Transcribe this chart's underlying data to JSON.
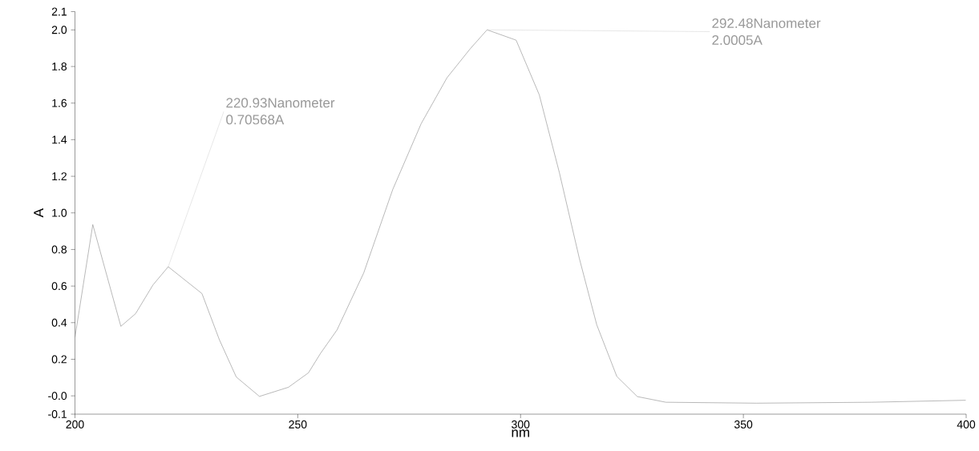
{
  "chart_data": {
    "type": "line",
    "xlabel": "nm",
    "ylabel": "A",
    "color": "#8a8a8a",
    "x": [
      200,
      204.0,
      210.3,
      213.6,
      217.5,
      220.93,
      228.5,
      232.4,
      236.2,
      241.4,
      247.9,
      252.4,
      255.1,
      258.8,
      264.8,
      271.3,
      277.7,
      283.5,
      288.7,
      292.48,
      299.0,
      304.2,
      308.7,
      313.2,
      317.1,
      321.6,
      326.2,
      332.6,
      352.9,
      378.7,
      399.9
    ],
    "values": [
      0.32,
      0.936,
      0.38,
      0.449,
      0.606,
      0.70568,
      0.559,
      0.307,
      0.103,
      -0.003,
      0.047,
      0.126,
      0.232,
      0.36,
      0.672,
      1.127,
      1.488,
      1.739,
      1.897,
      2.0005,
      1.944,
      1.645,
      1.221,
      0.75,
      0.388,
      0.106,
      -0.004,
      -0.035,
      -0.04,
      -0.035,
      -0.024
    ],
    "xlim": [
      200,
      400
    ],
    "xticks": [
      200,
      250,
      300,
      350,
      400
    ],
    "ylim": [
      -0.1,
      2.1
    ],
    "yticks": [
      {
        "value": -0.1,
        "label": "-0.1"
      },
      {
        "value": 0,
        "label": "-0.0"
      },
      {
        "value": 0.2,
        "label": "0.2"
      },
      {
        "value": 0.4,
        "label": "0.4"
      },
      {
        "value": 0.6,
        "label": "0.6"
      },
      {
        "value": 0.8,
        "label": "0.8"
      },
      {
        "value": 1.0,
        "label": "1.0"
      },
      {
        "value": 1.2,
        "label": "1.2"
      },
      {
        "value": 1.4,
        "label": "1.4"
      },
      {
        "value": 1.6,
        "label": "1.6"
      },
      {
        "value": 1.8,
        "label": "1.8"
      },
      {
        "value": 2.0,
        "label": "2.0"
      },
      {
        "value": 2.1,
        "label": "2.1"
      }
    ],
    "annotations": [
      {
        "text": "220.93Nanometer 0.70568A",
        "x": 220.93,
        "y": 0.70568
      },
      {
        "text": "292.48Nanometer 2.0005A",
        "x": 292.48,
        "y": 2.0005
      }
    ],
    "grid": false,
    "marker": "none",
    "line_style": "solid"
  }
}
